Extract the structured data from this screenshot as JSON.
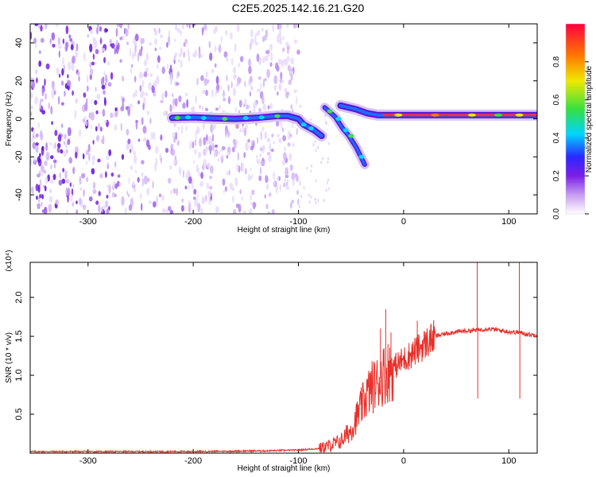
{
  "title": "C2E5.2025.142.16.21.G20",
  "chart_data": [
    {
      "type": "heatmap",
      "xlabel": "Height of straight line (km)",
      "ylabel": "Frequency (Hz)",
      "xlim": [
        -355,
        127
      ],
      "ylim": [
        -50,
        50
      ],
      "xticks": [
        -300,
        -200,
        -100,
        0,
        100
      ],
      "yticks": [
        -40,
        -20,
        0,
        20,
        40
      ],
      "colorbar": {
        "label": "Normalized spectral amplitude",
        "range": [
          0.0,
          1.0
        ],
        "ticks": [
          "0.0",
          "0.2",
          "0.4",
          "0.6",
          "0.8"
        ],
        "colors": [
          "#ffffff",
          "#c79cf2",
          "#7a1fe6",
          "#2a28ff",
          "#00d5ff",
          "#35e040",
          "#f0e800",
          "#ff7a00",
          "#ff0040"
        ]
      },
      "noise_region": {
        "x": [
          -355,
          -100
        ],
        "y": [
          -50,
          50
        ]
      },
      "trace": [
        {
          "x": -220,
          "y": 0.5
        },
        {
          "x": -200,
          "y": 0.8
        },
        {
          "x": -180,
          "y": 0.3
        },
        {
          "x": -160,
          "y": 0
        },
        {
          "x": -140,
          "y": 0.5
        },
        {
          "x": -120,
          "y": 1.5
        },
        {
          "x": -110,
          "y": 1.5
        },
        {
          "x": -100,
          "y": 0
        },
        {
          "x": -95,
          "y": -3
        },
        {
          "x": -85,
          "y": -6
        },
        {
          "x": -78,
          "y": -9
        }
      ],
      "trace2": [
        {
          "x": -75,
          "y": 6
        },
        {
          "x": -65,
          "y": 1
        },
        {
          "x": -58,
          "y": -5
        },
        {
          "x": -52,
          "y": -9
        },
        {
          "x": -45,
          "y": -15
        },
        {
          "x": -37,
          "y": -24
        }
      ],
      "trace3": [
        {
          "x": -60,
          "y": 7
        },
        {
          "x": -45,
          "y": 5
        },
        {
          "x": -35,
          "y": 3
        },
        {
          "x": -25,
          "y": 2
        },
        {
          "x": -10,
          "y": 2
        },
        {
          "x": 0,
          "y": 2
        },
        {
          "x": 30,
          "y": 2
        },
        {
          "x": 60,
          "y": 2
        },
        {
          "x": 90,
          "y": 2
        },
        {
          "x": 115,
          "y": 2
        },
        {
          "x": 127,
          "y": 2
        }
      ]
    },
    {
      "type": "line",
      "xlabel": "Height of straight line (km)",
      "ylabel": "SNR (10 * v/v)",
      "yscale_label": "(x10⁴)",
      "xlim": [
        -355,
        127
      ],
      "ylim": [
        0,
        2.45
      ],
      "xticks": [
        -300,
        -200,
        -100,
        0,
        100
      ],
      "yticks": [
        0.5,
        1.0,
        1.5,
        2.0
      ],
      "color": "#e8302a",
      "series": [
        {
          "x": -355,
          "y": 0.02
        },
        {
          "x": -300,
          "y": 0.02
        },
        {
          "x": -200,
          "y": 0.02
        },
        {
          "x": -130,
          "y": 0.03
        },
        {
          "x": -100,
          "y": 0.04
        },
        {
          "x": -80,
          "y": 0.06
        },
        {
          "x": -70,
          "y": 0.1
        },
        {
          "x": -60,
          "y": 0.15
        },
        {
          "x": -50,
          "y": 0.3
        },
        {
          "x": -45,
          "y": 0.45
        },
        {
          "x": -40,
          "y": 0.6
        },
        {
          "x": -35,
          "y": 0.75
        },
        {
          "x": -30,
          "y": 0.85
        },
        {
          "x": -25,
          "y": 0.9
        },
        {
          "x": -20,
          "y": 1.0
        },
        {
          "x": -15,
          "y": 1.05
        },
        {
          "x": -10,
          "y": 1.1
        },
        {
          "x": -5,
          "y": 1.15
        },
        {
          "x": 0,
          "y": 1.2
        },
        {
          "x": 10,
          "y": 1.3
        },
        {
          "x": 20,
          "y": 1.4
        },
        {
          "x": 30,
          "y": 1.5
        },
        {
          "x": 45,
          "y": 1.55
        },
        {
          "x": 60,
          "y": 1.57
        },
        {
          "x": 70,
          "y": 1.58
        },
        {
          "x": 80,
          "y": 1.6
        },
        {
          "x": 100,
          "y": 1.56
        },
        {
          "x": 110,
          "y": 1.55
        },
        {
          "x": 120,
          "y": 1.52
        },
        {
          "x": 127,
          "y": 1.52
        }
      ],
      "spikes": [
        {
          "x": -22,
          "y": 1.6
        },
        {
          "x": -17,
          "y": 1.85
        },
        {
          "x": -12,
          "y": 1.55
        },
        {
          "x": 13,
          "y": 1.7
        },
        {
          "x": 70,
          "y": 2.45
        },
        {
          "x": 70.5,
          "y": 0.7
        },
        {
          "x": 110,
          "y": 2.45
        },
        {
          "x": 110.5,
          "y": 0.7
        }
      ]
    }
  ]
}
